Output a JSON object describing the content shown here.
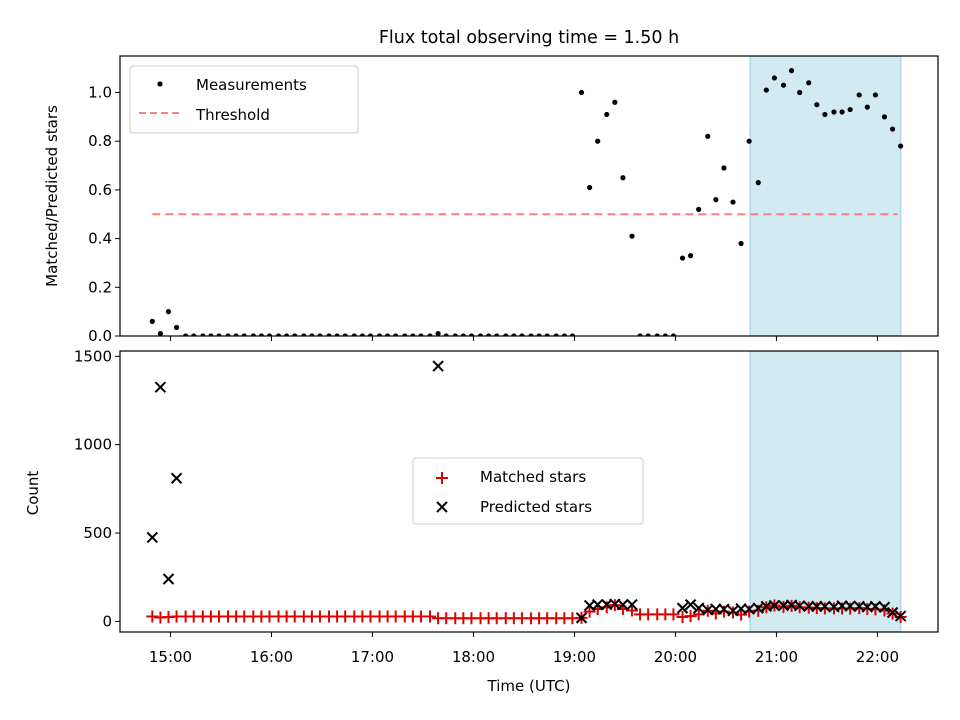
{
  "title": "Flux total observing time = 1.50 h",
  "colors": {
    "measurement": "#000000",
    "threshold": "#ff7f7f",
    "matched": "#e00000",
    "predicted": "#000000",
    "shade": "#add8e6"
  },
  "chart_data": [
    {
      "type": "scatter",
      "panel": "top",
      "ylabel": "Matched/Predicted stars",
      "xlim": [
        14.5,
        22.6
      ],
      "ylim": [
        0,
        1.15
      ],
      "yticks": [
        0.0,
        0.2,
        0.4,
        0.6,
        0.8,
        1.0
      ],
      "ytick_labels": [
        "0.0",
        "0.2",
        "0.4",
        "0.6",
        "0.8",
        "1.0"
      ],
      "legend": {
        "placement": "top-left",
        "entries": [
          "Measurements",
          "Threshold"
        ]
      },
      "shaded_span": [
        20.74,
        22.23
      ],
      "threshold": {
        "value": 0.5,
        "x_range": [
          14.82,
          22.2
        ]
      },
      "series": [
        {
          "name": "Measurements",
          "marker": "dot",
          "x": [
            14.82,
            14.9,
            14.98,
            15.06,
            15.15,
            15.23,
            15.32,
            15.4,
            15.48,
            15.57,
            15.65,
            15.73,
            15.82,
            15.9,
            15.98,
            16.07,
            16.15,
            16.23,
            16.32,
            16.4,
            16.48,
            16.57,
            16.65,
            16.73,
            16.82,
            16.9,
            16.98,
            17.07,
            17.15,
            17.23,
            17.32,
            17.4,
            17.48,
            17.57,
            17.65,
            17.73,
            17.82,
            17.9,
            17.98,
            18.07,
            18.15,
            18.23,
            18.32,
            18.4,
            18.48,
            18.57,
            18.65,
            18.73,
            18.82,
            18.9,
            18.98,
            19.07,
            19.15,
            19.23,
            19.32,
            19.4,
            19.48,
            19.57,
            19.65,
            19.73,
            19.82,
            19.9,
            19.98,
            20.07,
            20.15,
            20.23,
            20.32,
            20.4,
            20.48,
            20.57,
            20.65,
            20.73,
            20.82,
            20.9,
            20.98,
            21.07,
            21.15,
            21.23,
            21.32,
            21.4,
            21.48,
            21.57,
            21.65,
            21.73,
            21.82,
            21.9,
            21.98,
            22.07,
            22.15,
            22.23
          ],
          "y": [
            0.06,
            0.01,
            0.1,
            0.035,
            0,
            0,
            0,
            0,
            0,
            0,
            0,
            0,
            0,
            0,
            0,
            0,
            0,
            0,
            0,
            0,
            0,
            0,
            0,
            0,
            0,
            0,
            0,
            0,
            0,
            0,
            0,
            0,
            0,
            0,
            0.01,
            0,
            0,
            0,
            0,
            0,
            0,
            0,
            0,
            0,
            0,
            0,
            0,
            0,
            0,
            0,
            0,
            1.0,
            0.61,
            0.8,
            0.91,
            0.96,
            0.65,
            0.41,
            0,
            0,
            0,
            0,
            0,
            0.32,
            0.33,
            0.52,
            0.82,
            0.56,
            0.69,
            0.55,
            0.38,
            0.8,
            0.63,
            1.01,
            1.06,
            1.03,
            1.09,
            1.0,
            1.04,
            0.95,
            0.91,
            0.92,
            0.92,
            0.93,
            0.99,
            0.94,
            0.99,
            0.9,
            0.85,
            0.78
          ]
        }
      ]
    },
    {
      "type": "scatter",
      "panel": "bottom",
      "ylabel": "Count",
      "xlabel": "Time (UTC)",
      "xlim": [
        14.5,
        22.6
      ],
      "ylim": [
        -60,
        1530
      ],
      "xticks": [
        15,
        16,
        17,
        18,
        19,
        20,
        21,
        22
      ],
      "xtick_labels": [
        "15:00",
        "16:00",
        "17:00",
        "18:00",
        "19:00",
        "20:00",
        "21:00",
        "22:00"
      ],
      "yticks": [
        0,
        500,
        1000,
        1500
      ],
      "ytick_labels": [
        "0",
        "500",
        "1000",
        "1500"
      ],
      "legend": {
        "placement": "center",
        "entries": [
          "Matched stars",
          "Predicted stars"
        ]
      },
      "shaded_span": [
        20.74,
        22.23
      ],
      "series": [
        {
          "name": "Matched stars",
          "marker": "plus",
          "x": [
            14.82,
            14.9,
            14.98,
            15.06,
            15.15,
            15.23,
            15.32,
            15.4,
            15.48,
            15.57,
            15.65,
            15.73,
            15.82,
            15.9,
            15.98,
            16.07,
            16.15,
            16.23,
            16.32,
            16.4,
            16.48,
            16.57,
            16.65,
            16.73,
            16.82,
            16.9,
            16.98,
            17.07,
            17.15,
            17.23,
            17.32,
            17.4,
            17.48,
            17.57,
            17.65,
            17.73,
            17.82,
            17.9,
            17.98,
            18.07,
            18.15,
            18.23,
            18.32,
            18.4,
            18.48,
            18.57,
            18.65,
            18.73,
            18.82,
            18.9,
            18.98,
            19.07,
            19.15,
            19.23,
            19.32,
            19.4,
            19.48,
            19.57,
            19.65,
            19.73,
            19.82,
            19.9,
            19.98,
            20.07,
            20.15,
            20.23,
            20.32,
            20.4,
            20.48,
            20.57,
            20.65,
            20.73,
            20.82,
            20.9,
            20.98,
            21.07,
            21.15,
            21.23,
            21.32,
            21.4,
            21.48,
            21.57,
            21.65,
            21.73,
            21.82,
            21.9,
            21.98,
            22.07,
            22.15,
            22.23
          ],
          "y": [
            28,
            22,
            25,
            28,
            28,
            28,
            28,
            28,
            28,
            28,
            28,
            28,
            28,
            28,
            28,
            28,
            28,
            28,
            28,
            28,
            28,
            28,
            28,
            28,
            28,
            28,
            28,
            28,
            28,
            28,
            28,
            28,
            28,
            28,
            18,
            18,
            18,
            18,
            18,
            18,
            18,
            18,
            18,
            18,
            18,
            18,
            18,
            18,
            18,
            18,
            18,
            20,
            55,
            70,
            80,
            92,
            70,
            62,
            40,
            40,
            40,
            40,
            40,
            25,
            30,
            40,
            60,
            45,
            55,
            50,
            38,
            55,
            60,
            80,
            90,
            82,
            88,
            80,
            78,
            75,
            74,
            74,
            73,
            72,
            75,
            70,
            68,
            62,
            45,
            25
          ]
        },
        {
          "name": "Predicted stars",
          "marker": "x",
          "x": [
            14.82,
            14.9,
            14.98,
            15.06,
            19.07,
            19.15,
            19.23,
            19.32,
            19.4,
            19.48,
            19.57,
            17.65,
            20.07,
            20.15,
            20.23,
            20.32,
            20.4,
            20.48,
            20.57,
            20.65,
            20.73,
            20.82,
            20.9,
            20.98,
            21.07,
            21.15,
            21.23,
            21.32,
            21.4,
            21.48,
            21.57,
            21.65,
            21.73,
            21.82,
            21.9,
            21.98,
            22.07,
            22.15,
            22.23
          ],
          "y": [
            475,
            1325,
            240,
            810,
            20,
            90,
            95,
            95,
            98,
            95,
            95,
            1445,
            75,
            95,
            75,
            65,
            70,
            70,
            60,
            72,
            70,
            75,
            85,
            90,
            90,
            92,
            88,
            85,
            85,
            85,
            82,
            88,
            87,
            85,
            82,
            85,
            80,
            50,
            30
          ]
        }
      ]
    }
  ]
}
